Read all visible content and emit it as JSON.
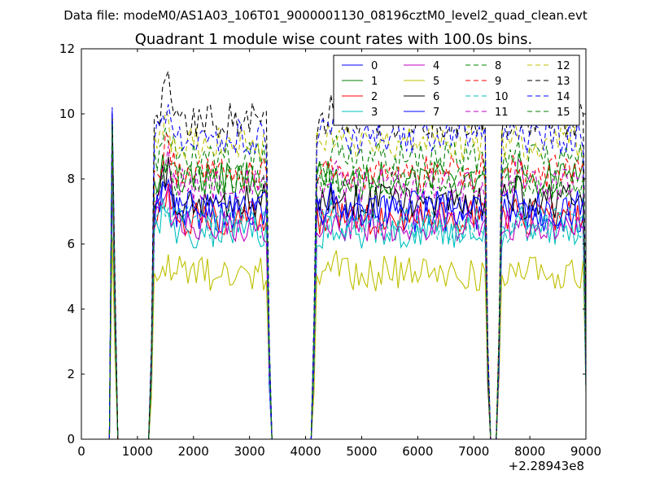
{
  "header": {
    "datafile": "Data file: modeM0/AS1A03_106T01_9000001130_08196cztM0_level2_quad_clean.evt"
  },
  "chart_data": {
    "type": "line",
    "title": "Quadrant 1 module wise count rates with 100.0s bins.",
    "xlabel": "",
    "ylabel": "",
    "x_offset_label": "+2.28943e8",
    "xlim": [
      0,
      9000
    ],
    "ylim": [
      0,
      12
    ],
    "xticks": [
      0,
      1000,
      2000,
      3000,
      4000,
      5000,
      6000,
      7000,
      8000,
      9000
    ],
    "yticks": [
      0,
      2,
      4,
      6,
      8,
      10,
      12
    ],
    "legend_position": "top-right",
    "segments": [
      {
        "start": 550,
        "end": 750
      },
      {
        "start": 1250,
        "end": 3350
      },
      {
        "start": 4150,
        "end": 7250
      },
      {
        "start": 7450,
        "end": 9000
      }
    ],
    "series": [
      {
        "name": "0",
        "color": "#0000ff",
        "dash": false,
        "level": 6.9,
        "first": 10.1
      },
      {
        "name": "1",
        "color": "#008000",
        "dash": false,
        "level": 8.0,
        "first": 9.6
      },
      {
        "name": "2",
        "color": "#ff0000",
        "dash": false,
        "level": 6.8,
        "first": 9.0
      },
      {
        "name": "3",
        "color": "#00bfbf",
        "dash": false,
        "level": 6.4,
        "first": 8.6
      },
      {
        "name": "4",
        "color": "#bf00bf",
        "dash": false,
        "level": 6.6,
        "first": 8.2
      },
      {
        "name": "5",
        "color": "#bfbf00",
        "dash": false,
        "level": 5.1,
        "first": 6.2
      },
      {
        "name": "6",
        "color": "#000000",
        "dash": false,
        "level": 7.3,
        "first": 9.2
      },
      {
        "name": "7",
        "color": "#0000ff",
        "dash": false,
        "level": 7.1,
        "first": 9.9
      },
      {
        "name": "8",
        "color": "#008000",
        "dash": true,
        "level": 8.6,
        "first": 9.8
      },
      {
        "name": "9",
        "color": "#ff0000",
        "dash": true,
        "level": 8.2,
        "first": 9.4
      },
      {
        "name": "10",
        "color": "#00bfbf",
        "dash": true,
        "level": 6.6,
        "first": 7.8
      },
      {
        "name": "11",
        "color": "#bf00bf",
        "dash": true,
        "level": 7.8,
        "first": 8.8
      },
      {
        "name": "12",
        "color": "#bfbf00",
        "dash": true,
        "level": 9.1,
        "first": 9.4
      },
      {
        "name": "13",
        "color": "#000000",
        "dash": true,
        "level": 9.8,
        "first": 10.0
      },
      {
        "name": "14",
        "color": "#0000ff",
        "dash": true,
        "level": 9.3,
        "first": 10.2
      },
      {
        "name": "15",
        "color": "#008000",
        "dash": true,
        "level": 7.9,
        "first": 9.7
      }
    ]
  }
}
